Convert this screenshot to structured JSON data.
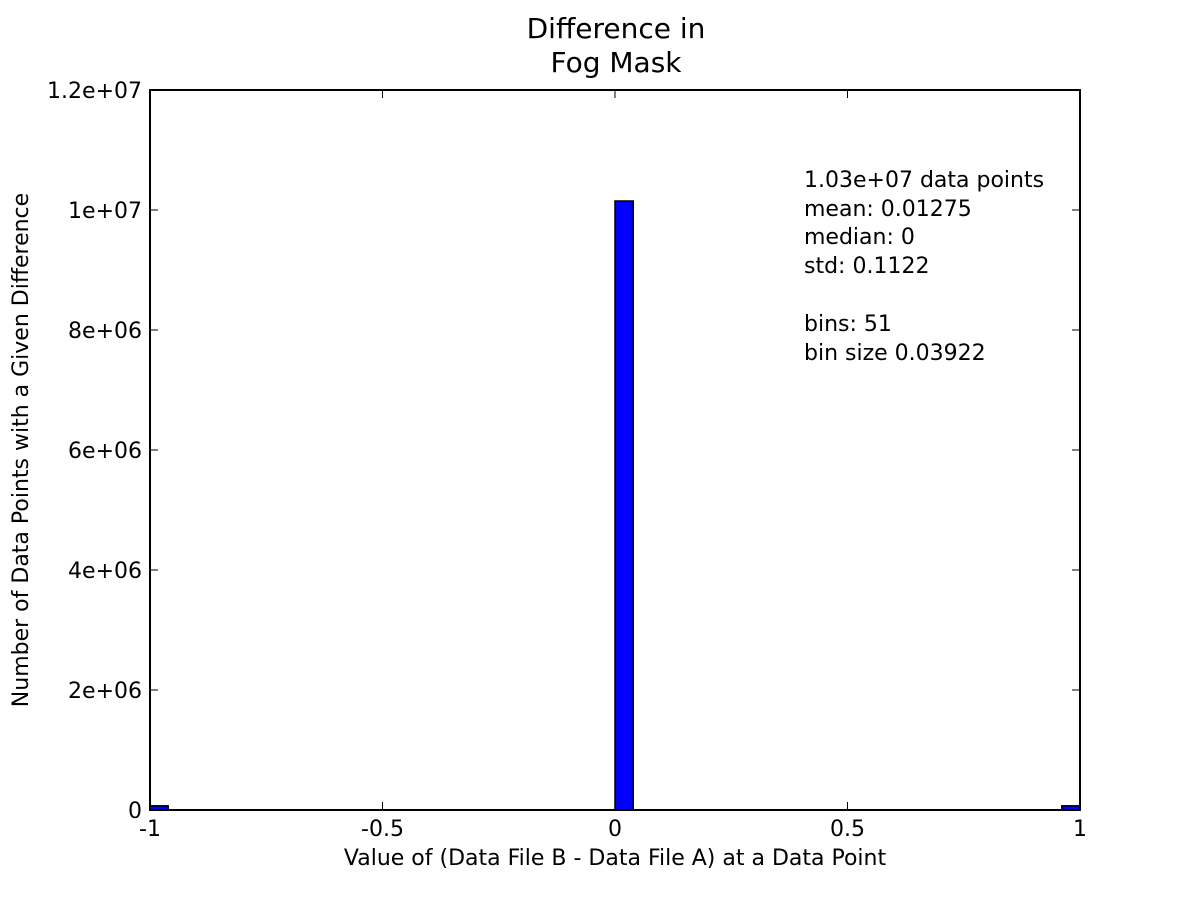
{
  "chart_data": {
    "type": "bar",
    "title_lines": [
      "Difference in",
      "Fog Mask"
    ],
    "xlabel": "Value of (Data File B - Data File A) at a Data Point",
    "ylabel": "Number of Data Points with a Given Difference",
    "xlim": [
      -1,
      1
    ],
    "ylim": [
      0,
      12000000
    ],
    "x_ticks": [
      {
        "value": -1,
        "label": "-1"
      },
      {
        "value": -0.5,
        "label": "-0.5"
      },
      {
        "value": 0,
        "label": "0"
      },
      {
        "value": 0.5,
        "label": "0.5"
      },
      {
        "value": 1,
        "label": "1"
      }
    ],
    "y_ticks": [
      {
        "value": 0,
        "label": "0"
      },
      {
        "value": 2000000,
        "label": "2e+06"
      },
      {
        "value": 4000000,
        "label": "4e+06"
      },
      {
        "value": 6000000,
        "label": "6e+06"
      },
      {
        "value": 8000000,
        "label": "8e+06"
      },
      {
        "value": 10000000,
        "label": "1e+07"
      },
      {
        "value": 12000000,
        "label": "1.2e+07"
      }
    ],
    "bins": [
      {
        "start": -1.0,
        "end": -0.96078,
        "count": 70000
      },
      {
        "start": 0.0,
        "end": 0.03922,
        "count": 10150000
      },
      {
        "start": 0.96078,
        "end": 1.0,
        "count": 70000
      }
    ],
    "bar_color": "#0000ff",
    "bar_edge_color": "#000000",
    "annotation_lines": [
      "1.03e+07 data points",
      "mean: 0.01275",
      "median: 0",
      "std: 0.1122",
      "",
      "bins: 51",
      "bin size 0.03922"
    ],
    "grid": false,
    "legend": "none"
  }
}
